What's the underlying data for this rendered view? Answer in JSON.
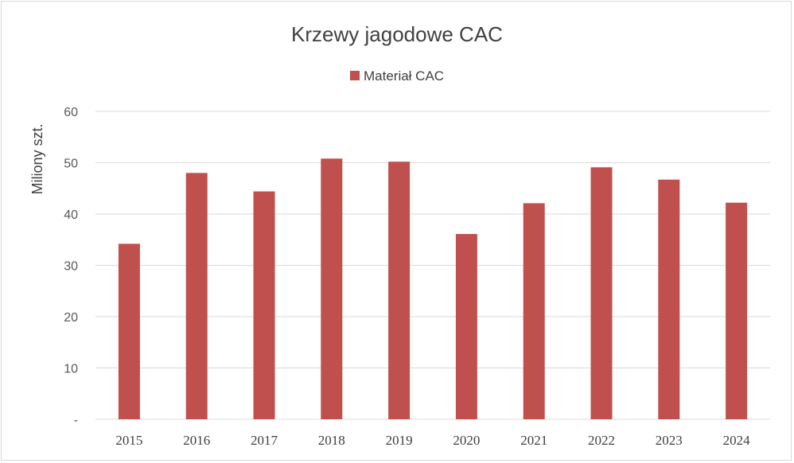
{
  "chart_data": {
    "type": "bar",
    "title": "Krzewy jagodowe CAC",
    "ylabel": "Miliony szt.",
    "xlabel": "",
    "categories": [
      "2015",
      "2016",
      "2017",
      "2018",
      "2019",
      "2020",
      "2021",
      "2022",
      "2023",
      "2024"
    ],
    "series": [
      {
        "name": "Materiał CAC",
        "color": "#c0504d",
        "values": [
          34.2,
          48.0,
          44.4,
          50.8,
          50.2,
          36.1,
          42.1,
          49.1,
          46.7,
          42.2
        ]
      }
    ],
    "ylim": [
      0,
      60
    ],
    "yticks": [
      0,
      10,
      20,
      30,
      40,
      50,
      60
    ],
    "ytick_labels": [
      "-",
      "10",
      "20",
      "30",
      "40",
      "50",
      "60"
    ],
    "grid": true,
    "legend_position": "top-center",
    "gridline_color": "#d9d9d9"
  }
}
